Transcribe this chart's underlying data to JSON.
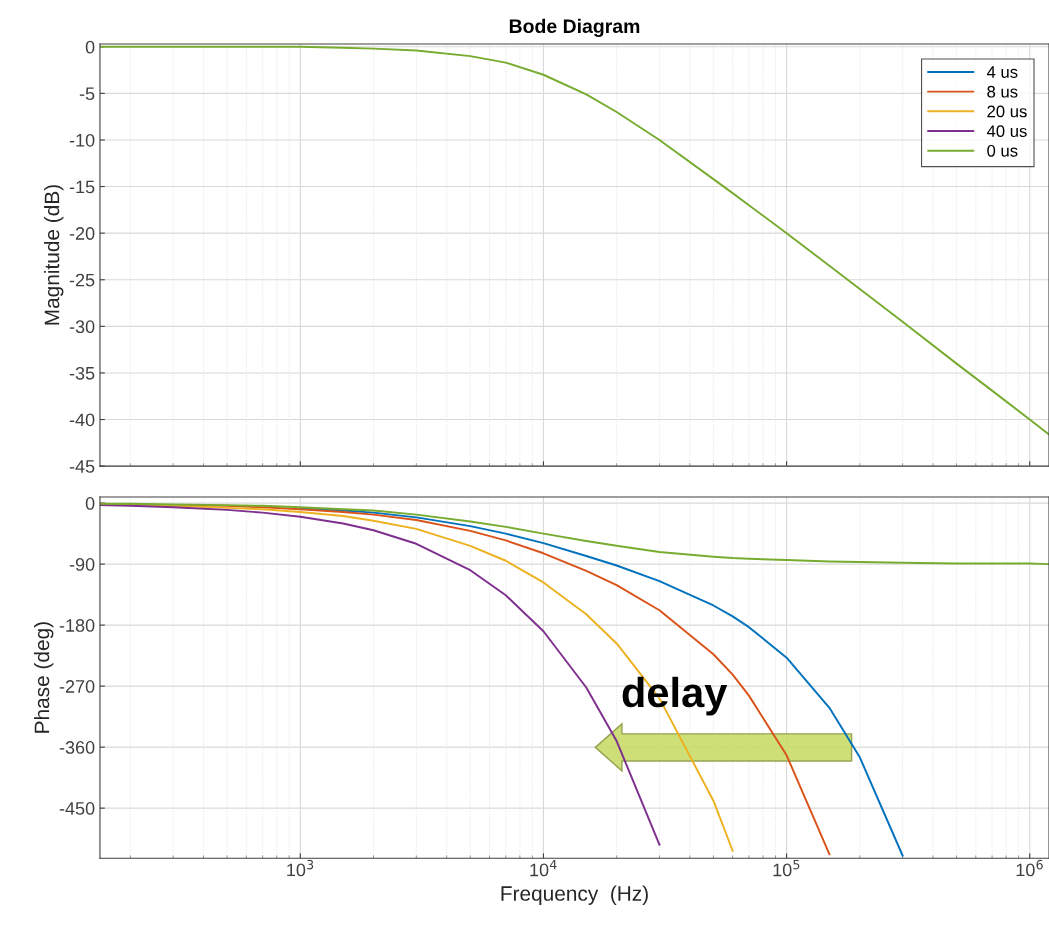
{
  "chart_data": [
    {
      "type": "line",
      "title": "Bode Diagram",
      "ylabel": "Magnitude (dB)",
      "x": [
        150,
        200,
        300,
        500,
        700,
        1000,
        1500,
        2000,
        3000,
        5000,
        7000,
        10000,
        15000,
        20000,
        30000,
        50000,
        60000,
        70000,
        100000,
        150000,
        200000,
        300000,
        500000,
        700000,
        1000000,
        1200000
      ],
      "series": [
        {
          "name": "4 us",
          "color": "#0072bd",
          "values": [
            null,
            null,
            null,
            null,
            null,
            null,
            null,
            null,
            null,
            null,
            null,
            null,
            null,
            null,
            null,
            null,
            null,
            null,
            null,
            null,
            null,
            null,
            null,
            null,
            null,
            null
          ]
        },
        {
          "name": "8 us",
          "color": "#d95319",
          "values": [
            null,
            null,
            null,
            null,
            null,
            null,
            null,
            null,
            null,
            null,
            null,
            null,
            null,
            null,
            null,
            null,
            null,
            null,
            null,
            null,
            null,
            null,
            null,
            null,
            null,
            null
          ]
        },
        {
          "name": "20 us",
          "color": "#edb120",
          "values": [
            null,
            null,
            null,
            null,
            null,
            null,
            null,
            null,
            null,
            null,
            null,
            null,
            null,
            null,
            null,
            null,
            null,
            null,
            null,
            null,
            null,
            null,
            null,
            null,
            null,
            null
          ]
        },
        {
          "name": "40 us",
          "color": "#7e2f8e",
          "values": [
            null,
            null,
            null,
            null,
            null,
            null,
            null,
            null,
            null,
            null,
            null,
            null,
            null,
            null,
            null,
            null,
            null,
            null,
            null,
            null,
            null,
            null,
            null,
            null,
            null,
            null
          ]
        },
        {
          "name": "0 us",
          "color": "#77ac30",
          "values": [
            0,
            0,
            0,
            0,
            0,
            0,
            -0.1,
            -0.2,
            -0.4,
            -1.0,
            -1.7,
            -3.0,
            -5.1,
            -7.0,
            -10.0,
            -14.2,
            -15.7,
            -17.0,
            -20.0,
            -23.5,
            -26.0,
            -29.5,
            -34.0,
            -36.9,
            -40.0,
            -41.6
          ]
        }
      ],
      "xlim": [
        150,
        1200000
      ],
      "xticks": [
        {
          "value": 1000,
          "label": null
        },
        {
          "value": 10000,
          "label": null
        },
        {
          "value": 100000,
          "label": null
        },
        {
          "value": 1000000,
          "label": null
        }
      ],
      "ylim": [
        -45,
        0.3
      ],
      "yticks": [
        0,
        -5,
        -10,
        -15,
        -20,
        -25,
        -30,
        -35,
        -40,
        -45
      ],
      "tick_labels": "y",
      "log": "x",
      "grid": true,
      "legend": "top right"
    },
    {
      "type": "line",
      "xlabel": "Frequency  (Hz)",
      "ylabel": "Phase (deg)",
      "x": [
        150,
        200,
        300,
        500,
        700,
        1000,
        1500,
        2000,
        3000,
        5000,
        7000,
        10000,
        15000,
        20000,
        30000,
        50000,
        60000,
        70000,
        100000,
        150000,
        200000,
        300000,
        500000,
        700000,
        1000000,
        1200000
      ],
      "series": [
        {
          "color": "#0072bd",
          "values": [
            null,
            null,
            null,
            null,
            null,
            -7,
            -11,
            -14,
            -21,
            -34,
            -45,
            -59,
            -78,
            -92,
            -115,
            -151,
            -167,
            -183,
            -228,
            -302,
            -375,
            -520,
            null,
            null,
            null,
            null
          ]
        },
        {
          "color": "#d95319",
          "values": [
            -1,
            -2,
            -3,
            -4,
            -6,
            -9,
            -13,
            -17,
            -25,
            -41,
            -55,
            -74,
            -100,
            -121,
            -158,
            -223,
            -253,
            -284,
            -372,
            -518,
            null,
            null,
            null,
            null,
            null,
            null
          ]
        },
        {
          "color": "#edb120",
          "values": [
            -2,
            -3,
            -4,
            -7,
            -9,
            -13,
            -19,
            -26,
            -38,
            -63,
            -85,
            -117,
            -164,
            -207,
            -288,
            -439,
            -513,
            null,
            null,
            null,
            null,
            null,
            null,
            null,
            null,
            null
          ]
        },
        {
          "color": "#7e2f8e",
          "values": [
            -3,
            -4,
            -6,
            -10,
            -14,
            -20,
            -30,
            -40,
            -60,
            -99,
            -136,
            -189,
            -272,
            -351,
            -504,
            null,
            null,
            null,
            null,
            null,
            null,
            null,
            null,
            null,
            null,
            null
          ]
        },
        {
          "color": "#77ac30",
          "values": [
            -1,
            -1,
            -2,
            -3,
            -4,
            -6,
            -9,
            -11,
            -17,
            -27,
            -35,
            -45,
            -56,
            -63,
            -72,
            -79,
            -81,
            -82,
            -84,
            -86,
            -87,
            -88,
            -89,
            -89,
            -89,
            -90
          ]
        }
      ],
      "annotations": [
        "delay"
      ],
      "xlim": [
        150,
        1200000
      ],
      "xticks": [
        {
          "value": 1000,
          "label": "10$^{3}$"
        },
        {
          "value": 10000,
          "label": "10$^{4}$"
        },
        {
          "value": 100000,
          "label": "10$^{5}$"
        },
        {
          "value": 1000000,
          "label": "10$^{6}$"
        }
      ],
      "ylim": [
        -524,
        9
      ],
      "yticks": [
        0,
        -90,
        -180,
        -270,
        -360,
        -450
      ],
      "log": "x",
      "grid": true
    }
  ]
}
